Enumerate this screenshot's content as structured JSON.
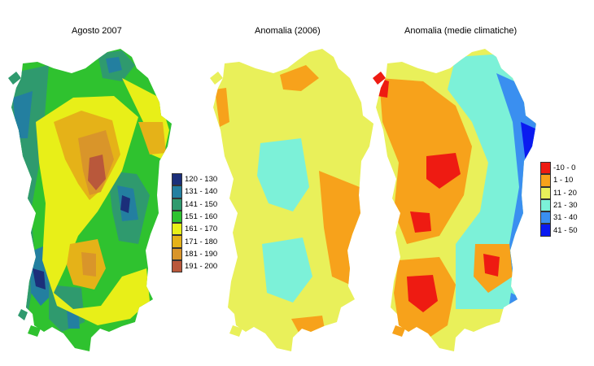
{
  "maps": [
    {
      "id": "map1",
      "title": "Agosto 2007",
      "legend": [
        {
          "label": "120 - 130",
          "color": "#1b2f7a"
        },
        {
          "label": "131 - 140",
          "color": "#237fa0"
        },
        {
          "label": "141 - 150",
          "color": "#2f9a6e"
        },
        {
          "label": "151 - 160",
          "color": "#2fc22f"
        },
        {
          "label": "161 - 170",
          "color": "#e8ef18"
        },
        {
          "label": "171 - 180",
          "color": "#e5b218"
        },
        {
          "label": "181 - 190",
          "color": "#d9952a"
        },
        {
          "label": "191 - 200",
          "color": "#b9583b"
        }
      ]
    },
    {
      "id": "map2",
      "title": "Anomalia (2006)"
    },
    {
      "id": "map3",
      "title": "Anomalia (medie climatiche)",
      "legend": [
        {
          "label": "-10 - 0",
          "color": "#ee1b12"
        },
        {
          "label": "1 - 10",
          "color": "#f7a21b"
        },
        {
          "label": "11 - 20",
          "color": "#e9f05a"
        },
        {
          "label": "21 - 30",
          "color": "#7cf1d8"
        },
        {
          "label": "31 - 40",
          "color": "#3a8ff0"
        },
        {
          "label": "41 - 50",
          "color": "#0a1af0"
        }
      ]
    }
  ]
}
